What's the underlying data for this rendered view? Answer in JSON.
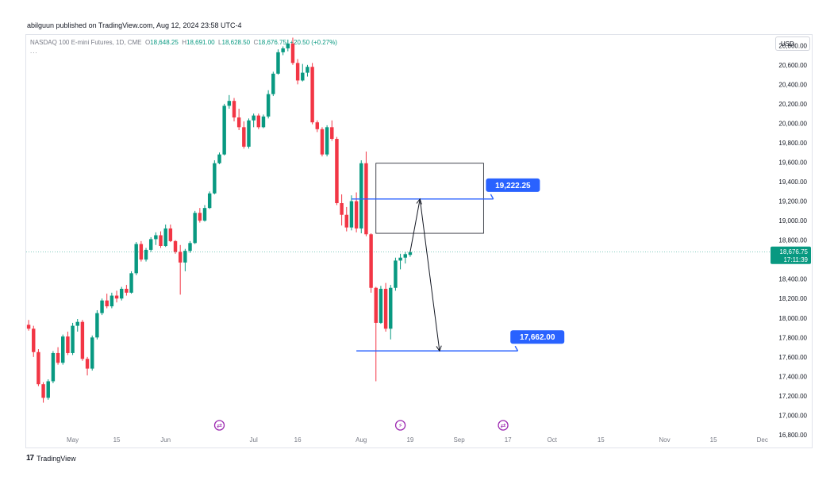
{
  "publisher_line": "abilguun published on TradingView.com, Aug 12, 2024 23:58 UTC-4",
  "legend": {
    "symbol": "NASDAQ 100 E-mini Futures, 1D, CME",
    "open_label": "O",
    "open": "18,648.25",
    "high_label": "H",
    "high": "18,691.00",
    "low_label": "L",
    "low": "18,628.50",
    "close_label": "C",
    "close": "18,676.75",
    "change": "+20.50 (+0.27%)",
    "more": "..."
  },
  "currency": "USD",
  "footer_brand": "TradingView",
  "colors": {
    "up": "#089981",
    "down": "#f23645",
    "line": "#2962ff",
    "event": "#9c27b0",
    "box": "#131722"
  },
  "chart_data": {
    "type": "candlestick",
    "title": "NASDAQ 100 E-mini Futures, 1D, CME",
    "ylim": [
      16800,
      20900
    ],
    "y_ticks": [
      "16,800.00",
      "17,000.00",
      "17,200.00",
      "17,400.00",
      "17,600.00",
      "17,800.00",
      "18,000.00",
      "18,200.00",
      "18,400.00",
      "18,600.00",
      "18,800.00",
      "19,000.00",
      "19,200.00",
      "19,400.00",
      "19,600.00",
      "19,800.00",
      "20,000.00",
      "20,200.00",
      "20,400.00",
      "20,600.00",
      "20,800.00"
    ],
    "x_ticks": [
      {
        "label": "May",
        "bar": 9
      },
      {
        "label": "15",
        "bar": 18
      },
      {
        "label": "Jun",
        "bar": 28
      },
      {
        "label": "Jul",
        "bar": 46
      },
      {
        "label": "16",
        "bar": 55
      },
      {
        "label": "Aug",
        "bar": 68
      },
      {
        "label": "19",
        "bar": 78
      },
      {
        "label": "Sep",
        "bar": 88
      },
      {
        "label": "17",
        "bar": 98
      },
      {
        "label": "Oct",
        "bar": 107
      },
      {
        "label": "15",
        "bar": 117
      },
      {
        "label": "Nov",
        "bar": 130
      },
      {
        "label": "15",
        "bar": 140
      },
      {
        "label": "Dec",
        "bar": 150
      }
    ],
    "bars_visible": 152,
    "candles": [
      {
        "o": 17930,
        "h": 17980,
        "l": 17870,
        "c": 17890
      },
      {
        "o": 17890,
        "h": 17920,
        "l": 17600,
        "c": 17650
      },
      {
        "o": 17650,
        "h": 17680,
        "l": 17300,
        "c": 17320
      },
      {
        "o": 17320,
        "h": 17340,
        "l": 17130,
        "c": 17180
      },
      {
        "o": 17180,
        "h": 17370,
        "l": 17160,
        "c": 17350
      },
      {
        "o": 17350,
        "h": 17660,
        "l": 17330,
        "c": 17640
      },
      {
        "o": 17640,
        "h": 17700,
        "l": 17520,
        "c": 17540
      },
      {
        "o": 17540,
        "h": 17830,
        "l": 17520,
        "c": 17810
      },
      {
        "o": 17810,
        "h": 17860,
        "l": 17620,
        "c": 17640
      },
      {
        "o": 17640,
        "h": 17950,
        "l": 17620,
        "c": 17920
      },
      {
        "o": 17920,
        "h": 17990,
        "l": 17860,
        "c": 17960
      },
      {
        "o": 17960,
        "h": 17980,
        "l": 17560,
        "c": 17580
      },
      {
        "o": 17580,
        "h": 17600,
        "l": 17410,
        "c": 17480
      },
      {
        "o": 17480,
        "h": 17820,
        "l": 17460,
        "c": 17800
      },
      {
        "o": 17800,
        "h": 18080,
        "l": 17780,
        "c": 18050
      },
      {
        "o": 18050,
        "h": 18200,
        "l": 18030,
        "c": 18180
      },
      {
        "o": 18180,
        "h": 18250,
        "l": 18100,
        "c": 18120
      },
      {
        "o": 18120,
        "h": 18260,
        "l": 18100,
        "c": 18230
      },
      {
        "o": 18230,
        "h": 18280,
        "l": 18160,
        "c": 18200
      },
      {
        "o": 18200,
        "h": 18320,
        "l": 18180,
        "c": 18300
      },
      {
        "o": 18300,
        "h": 18340,
        "l": 18230,
        "c": 18260
      },
      {
        "o": 18260,
        "h": 18480,
        "l": 18250,
        "c": 18460
      },
      {
        "o": 18460,
        "h": 18780,
        "l": 18440,
        "c": 18760
      },
      {
        "o": 18760,
        "h": 18790,
        "l": 18580,
        "c": 18600
      },
      {
        "o": 18600,
        "h": 18720,
        "l": 18580,
        "c": 18700
      },
      {
        "o": 18700,
        "h": 18830,
        "l": 18680,
        "c": 18810
      },
      {
        "o": 18810,
        "h": 18880,
        "l": 18750,
        "c": 18850
      },
      {
        "o": 18850,
        "h": 18890,
        "l": 18720,
        "c": 18740
      },
      {
        "o": 18740,
        "h": 18960,
        "l": 18730,
        "c": 18920
      },
      {
        "o": 18920,
        "h": 18960,
        "l": 18780,
        "c": 18790
      },
      {
        "o": 18790,
        "h": 18800,
        "l": 18660,
        "c": 18680
      },
      {
        "o": 18680,
        "h": 18750,
        "l": 18240,
        "c": 18570
      },
      {
        "o": 18570,
        "h": 18710,
        "l": 18480,
        "c": 18690
      },
      {
        "o": 18690,
        "h": 18790,
        "l": 18670,
        "c": 18770
      },
      {
        "o": 18770,
        "h": 19100,
        "l": 18760,
        "c": 19080
      },
      {
        "o": 19080,
        "h": 19130,
        "l": 18980,
        "c": 19000
      },
      {
        "o": 19000,
        "h": 19160,
        "l": 18990,
        "c": 19130
      },
      {
        "o": 19130,
        "h": 19300,
        "l": 19120,
        "c": 19280
      },
      {
        "o": 19280,
        "h": 19620,
        "l": 19270,
        "c": 19590
      },
      {
        "o": 19590,
        "h": 19700,
        "l": 19580,
        "c": 19680
      },
      {
        "o": 19680,
        "h": 20200,
        "l": 19670,
        "c": 20180
      },
      {
        "o": 20180,
        "h": 20290,
        "l": 20150,
        "c": 20230
      },
      {
        "o": 20230,
        "h": 20260,
        "l": 20020,
        "c": 20060
      },
      {
        "o": 20060,
        "h": 20150,
        "l": 19930,
        "c": 19960
      },
      {
        "o": 19960,
        "h": 20020,
        "l": 19740,
        "c": 19760
      },
      {
        "o": 19760,
        "h": 20050,
        "l": 19740,
        "c": 20030
      },
      {
        "o": 20030,
        "h": 20100,
        "l": 19960,
        "c": 20080
      },
      {
        "o": 20080,
        "h": 20100,
        "l": 19940,
        "c": 19960
      },
      {
        "o": 19960,
        "h": 20090,
        "l": 19950,
        "c": 20070
      },
      {
        "o": 20070,
        "h": 20340,
        "l": 20050,
        "c": 20300
      },
      {
        "o": 20300,
        "h": 20530,
        "l": 20280,
        "c": 20510
      },
      {
        "o": 20510,
        "h": 20760,
        "l": 20500,
        "c": 20730
      },
      {
        "o": 20730,
        "h": 20790,
        "l": 20700,
        "c": 20770
      },
      {
        "o": 20770,
        "h": 20860,
        "l": 20740,
        "c": 20820
      },
      {
        "o": 20820,
        "h": 20880,
        "l": 20600,
        "c": 20620
      },
      {
        "o": 20620,
        "h": 20660,
        "l": 20400,
        "c": 20440
      },
      {
        "o": 20440,
        "h": 20610,
        "l": 20430,
        "c": 20520
      },
      {
        "o": 20520,
        "h": 20600,
        "l": 20480,
        "c": 20580
      },
      {
        "o": 20580,
        "h": 20620,
        "l": 19990,
        "c": 20010
      },
      {
        "o": 20010,
        "h": 20030,
        "l": 19910,
        "c": 19940
      },
      {
        "o": 19940,
        "h": 19960,
        "l": 19660,
        "c": 19680
      },
      {
        "o": 19680,
        "h": 19980,
        "l": 19660,
        "c": 19960
      },
      {
        "o": 19960,
        "h": 20030,
        "l": 19820,
        "c": 19840
      },
      {
        "o": 19840,
        "h": 19860,
        "l": 19160,
        "c": 19180
      },
      {
        "o": 19180,
        "h": 19270,
        "l": 18950,
        "c": 19060
      },
      {
        "o": 19060,
        "h": 19140,
        "l": 18890,
        "c": 18930
      },
      {
        "o": 18930,
        "h": 19260,
        "l": 18900,
        "c": 19200
      },
      {
        "o": 19200,
        "h": 19290,
        "l": 18880,
        "c": 18920
      },
      {
        "o": 18920,
        "h": 19620,
        "l": 18870,
        "c": 19590
      },
      {
        "o": 19590,
        "h": 19710,
        "l": 18840,
        "c": 18860
      },
      {
        "o": 18860,
        "h": 18870,
        "l": 18260,
        "c": 18310
      },
      {
        "o": 18310,
        "h": 18320,
        "l": 17350,
        "c": 17950
      },
      {
        "o": 17950,
        "h": 18330,
        "l": 17940,
        "c": 18300
      },
      {
        "o": 18300,
        "h": 18360,
        "l": 17860,
        "c": 17890
      },
      {
        "o": 17890,
        "h": 18340,
        "l": 17780,
        "c": 18310
      },
      {
        "o": 18310,
        "h": 18620,
        "l": 18280,
        "c": 18590
      },
      {
        "o": 18590,
        "h": 18660,
        "l": 18500,
        "c": 18620
      },
      {
        "o": 18620,
        "h": 18680,
        "l": 18560,
        "c": 18656
      },
      {
        "o": 18648.25,
        "h": 18691,
        "l": 18628.5,
        "c": 18676.75
      }
    ],
    "last_price": "18,676.75",
    "countdown": "17:11:39",
    "levels": [
      {
        "label": "19,222.25",
        "price": 19222.25,
        "from_bar": 66,
        "to_bar": 95,
        "label_bar": 99
      },
      {
        "label": "17,662.00",
        "price": 17662,
        "from_bar": 67,
        "to_bar": 100,
        "label_bar": 104
      }
    ],
    "box": {
      "from_bar": 71,
      "to_bar": 93,
      "top": 19590,
      "bottom": 18870
    },
    "arrow_path": [
      {
        "bar": 78,
        "price": 18680
      },
      {
        "bar": 80,
        "price": 19222.25
      },
      {
        "bar": 84,
        "price": 17662
      }
    ],
    "event_markers": [
      {
        "bar": 39,
        "type": "split"
      },
      {
        "bar": 76,
        "type": "flash"
      },
      {
        "bar": 97,
        "type": "split"
      }
    ],
    "grid": false
  }
}
